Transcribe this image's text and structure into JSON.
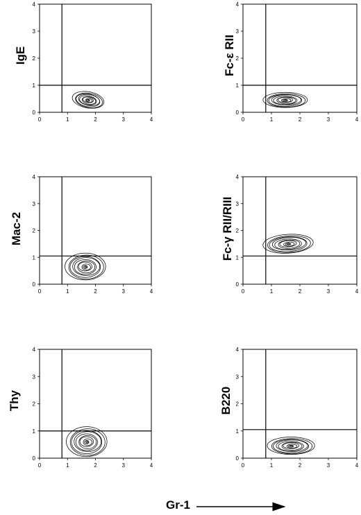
{
  "chart_data": [
    {
      "type": "contour",
      "ylabel": "IgE",
      "xlim": [
        0,
        4
      ],
      "ylim": [
        0,
        4
      ],
      "x_ticks": [
        "0",
        "1",
        "2",
        "3",
        "4"
      ],
      "y_ticks": [
        "0",
        "1",
        "2",
        "3",
        "4"
      ],
      "gate": {
        "x": 0.8,
        "y": 1.0
      },
      "population": {
        "x_center": 1.75,
        "y_center": 0.45,
        "x_spread": 0.55,
        "y_spread": 0.3,
        "tilt": -0.35
      }
    },
    {
      "type": "contour",
      "ylabel": "Fc-ε RII",
      "xlim": [
        0,
        4
      ],
      "ylim": [
        0,
        4
      ],
      "x_ticks": [
        "0",
        "1",
        "2",
        "3",
        "4"
      ],
      "y_ticks": [
        "0",
        "1",
        "2",
        "3",
        "4"
      ],
      "gate": {
        "x": 0.8,
        "y": 1.0
      },
      "population": {
        "x_center": 1.5,
        "y_center": 0.45,
        "x_spread": 0.75,
        "y_spread": 0.28,
        "tilt": 0
      }
    },
    {
      "type": "contour",
      "ylabel": "Mac-2",
      "xlim": [
        0,
        4
      ],
      "ylim": [
        0,
        4
      ],
      "x_ticks": [
        "0",
        "1",
        "2",
        "3",
        "4"
      ],
      "y_ticks": [
        "0",
        "1",
        "2",
        "3",
        "4"
      ],
      "gate": {
        "x": 0.8,
        "y": 1.05
      },
      "population": {
        "x_center": 1.65,
        "y_center": 0.65,
        "x_spread": 0.7,
        "y_spread": 0.5,
        "tilt": 0
      }
    },
    {
      "type": "contour",
      "ylabel": "Fc-γ RII/RIII",
      "xlim": [
        0,
        4
      ],
      "ylim": [
        0,
        4
      ],
      "x_ticks": [
        "0",
        "1",
        "2",
        "3",
        "4"
      ],
      "y_ticks": [
        "0",
        "1",
        "2",
        "3",
        "4"
      ],
      "gate": {
        "x": 0.8,
        "y": 1.05
      },
      "population": {
        "x_center": 1.6,
        "y_center": 1.5,
        "x_spread": 0.85,
        "y_spread": 0.35,
        "tilt": 0.12
      }
    },
    {
      "type": "contour",
      "ylabel": "Thy",
      "xlim": [
        0,
        4
      ],
      "ylim": [
        0,
        4
      ],
      "x_ticks": [
        "0",
        "1",
        "2",
        "3",
        "4"
      ],
      "y_ticks": [
        "0",
        "1",
        "2",
        "3",
        "4"
      ],
      "gate": {
        "x": 0.8,
        "y": 1.0
      },
      "population": {
        "x_center": 1.7,
        "y_center": 0.6,
        "x_spread": 0.7,
        "y_spread": 0.55,
        "tilt": 0
      }
    },
    {
      "type": "contour",
      "ylabel": "B220",
      "xlim": [
        0,
        4
      ],
      "ylim": [
        0,
        4
      ],
      "x_ticks": [
        "0",
        "1",
        "2",
        "3",
        "4"
      ],
      "y_ticks": [
        "0",
        "1",
        "2",
        "3",
        "4"
      ],
      "gate": {
        "x": 0.8,
        "y": 1.05
      },
      "population": {
        "x_center": 1.7,
        "y_center": 0.45,
        "x_spread": 0.8,
        "y_spread": 0.32,
        "tilt": 0
      }
    }
  ],
  "xlabel": "Gr-1"
}
